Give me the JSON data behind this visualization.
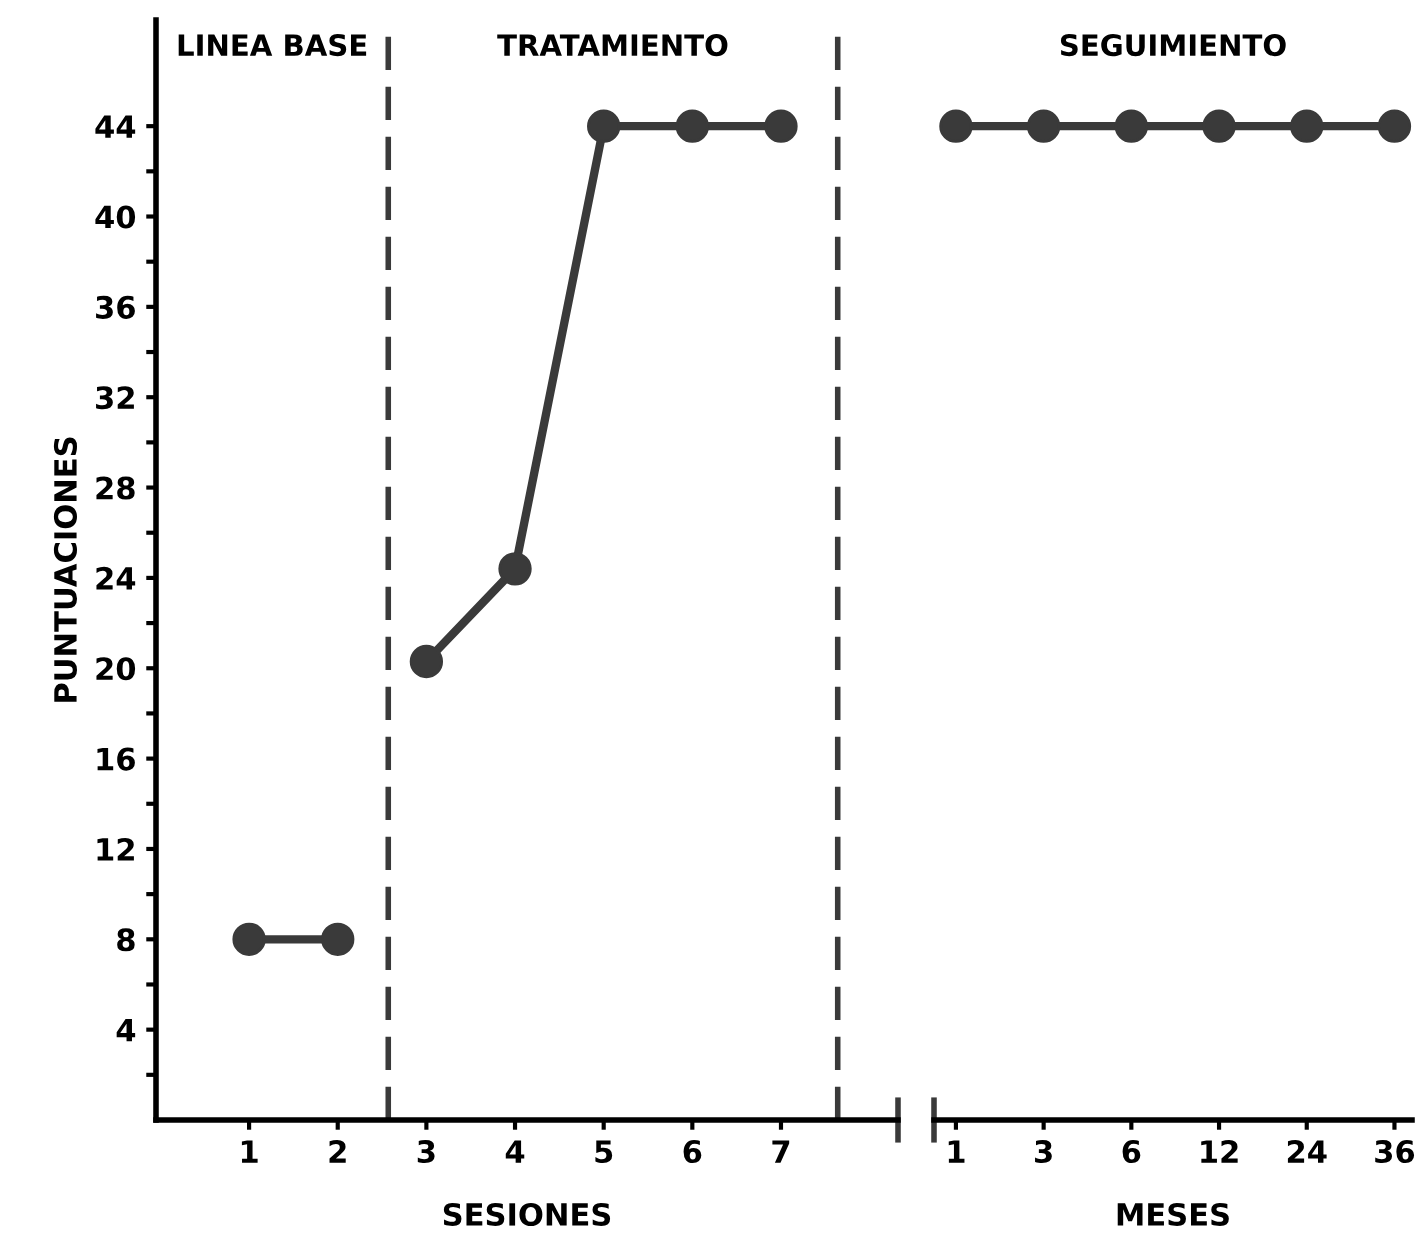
{
  "chart_data": [
    {
      "type": "line",
      "ylabel": "PUNTUACIONES",
      "xlabel": "SESIONES",
      "series": [
        {
          "color": "#3a3a3a",
          "x": [
            1,
            2
          ],
          "values": [
            8,
            8
          ]
        },
        {
          "color": "#3a3a3a",
          "x": [
            3,
            4,
            5,
            6,
            7
          ],
          "values": [
            20.3,
            24.4,
            44,
            44,
            44
          ]
        }
      ],
      "xlim": [
        -0.05,
        8.32
      ],
      "xticks": [
        1,
        2,
        3,
        4,
        5,
        6,
        7
      ],
      "ylim": [
        0,
        48.7
      ],
      "yticks": [
        {
          "value": 2,
          "label": null
        },
        4,
        {
          "value": 6,
          "label": null
        },
        8,
        {
          "value": 10,
          "label": null
        },
        12,
        {
          "value": 14,
          "label": null
        },
        16,
        {
          "value": 18,
          "label": null
        },
        20,
        {
          "value": 22,
          "label": null
        },
        24,
        {
          "value": 26,
          "label": null
        },
        28,
        {
          "value": 30,
          "label": null
        },
        32,
        {
          "value": 34,
          "label": null
        },
        36,
        {
          "value": 38,
          "label": null
        },
        40,
        {
          "value": 42,
          "label": null
        },
        44
      ],
      "ref_lines": [
        {
          "axis": "x",
          "value": 2.57,
          "line_style": "dashed",
          "color": "#3a3a3a"
        },
        {
          "axis": "x",
          "value": 7.64,
          "line_style": "dashed",
          "color": "#3a3a3a"
        }
      ],
      "annotations": [
        "LINEA BASE",
        "TRATAMIENTO"
      ],
      "marker": "circle",
      "line_style": "solid",
      "grid": false,
      "legend": false
    },
    {
      "type": "line",
      "xlabel": "MESES",
      "categories": [
        "1",
        "3",
        "6",
        "12",
        "24",
        "36"
      ],
      "series": [
        {
          "color": "#3a3a3a",
          "values": [
            44,
            44,
            44,
            44,
            44,
            44
          ]
        }
      ],
      "yticks": [
        4,
        8,
        12,
        16,
        20,
        24,
        28,
        32,
        36,
        40,
        44
      ],
      "tick_labels": "x",
      "annotations": [
        "SEGUIMIENTO"
      ],
      "marker": "circle",
      "line_style": "solid",
      "grid": false,
      "legend": false
    }
  ]
}
